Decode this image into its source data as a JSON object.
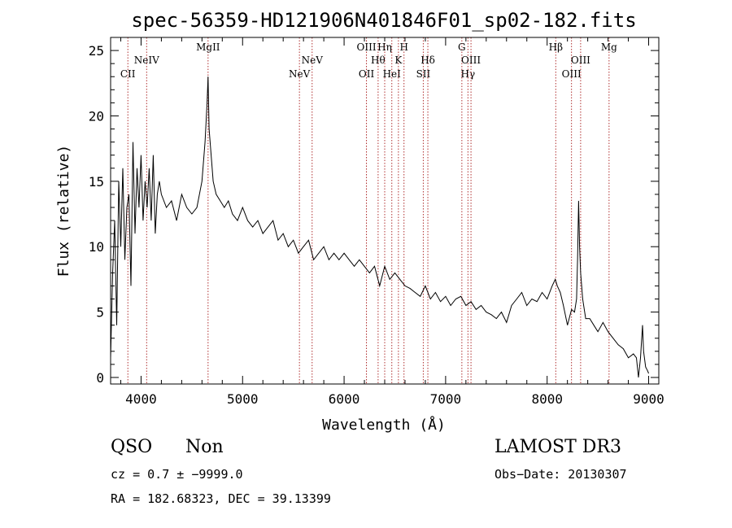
{
  "chart_data": {
    "type": "line",
    "title": "spec-56359-HD121906N401846F01_sp02-182.fits",
    "xlabel": "Wavelength (Å)",
    "ylabel": "Flux (relative)",
    "xlim": [
      3700,
      9100
    ],
    "ylim": [
      -0.5,
      26
    ],
    "xticks": [
      4000,
      5000,
      6000,
      7000,
      8000,
      9000
    ],
    "yticks": [
      0,
      5,
      10,
      15,
      20,
      25
    ],
    "series": [
      {
        "name": "spectrum",
        "x": [
          3700,
          3720,
          3740,
          3760,
          3780,
          3800,
          3820,
          3840,
          3860,
          3880,
          3900,
          3920,
          3940,
          3960,
          3980,
          4000,
          4020,
          4040,
          4060,
          4080,
          4100,
          4120,
          4140,
          4160,
          4180,
          4200,
          4250,
          4300,
          4350,
          4400,
          4450,
          4500,
          4550,
          4600,
          4630,
          4650,
          4660,
          4670,
          4690,
          4710,
          4740,
          4780,
          4820,
          4860,
          4900,
          4950,
          5000,
          5050,
          5100,
          5150,
          5200,
          5250,
          5300,
          5350,
          5400,
          5450,
          5500,
          5550,
          5600,
          5650,
          5700,
          5750,
          5800,
          5850,
          5900,
          5950,
          6000,
          6050,
          6100,
          6150,
          6200,
          6250,
          6300,
          6350,
          6400,
          6450,
          6500,
          6550,
          6600,
          6650,
          6700,
          6750,
          6800,
          6850,
          6900,
          6950,
          7000,
          7050,
          7100,
          7150,
          7200,
          7250,
          7300,
          7350,
          7400,
          7450,
          7500,
          7550,
          7600,
          7650,
          7700,
          7750,
          7800,
          7850,
          7900,
          7950,
          8000,
          8050,
          8080,
          8100,
          8130,
          8160,
          8200,
          8240,
          8270,
          8290,
          8300,
          8310,
          8320,
          8330,
          8350,
          8380,
          8420,
          8460,
          8500,
          8550,
          8600,
          8650,
          8700,
          8750,
          8800,
          8850,
          8880,
          8900,
          8920,
          8940,
          8950,
          8970,
          8990,
          9000
        ],
        "values": [
          1.5,
          8,
          12,
          4,
          15,
          10,
          16,
          9,
          13,
          14,
          7,
          18,
          11,
          16,
          13,
          17,
          12,
          15,
          13,
          16,
          12,
          17,
          11,
          14,
          15,
          14,
          13,
          13.5,
          12,
          14,
          13,
          12.5,
          13,
          15,
          18,
          21,
          23,
          19,
          17,
          15,
          14,
          13.5,
          13,
          13.5,
          12.5,
          12,
          13,
          12,
          11.5,
          12,
          11,
          11.5,
          12,
          10.5,
          11,
          10,
          10.5,
          9.5,
          10,
          10.5,
          9,
          9.5,
          10,
          9,
          9.5,
          9,
          9.5,
          9,
          8.5,
          9,
          8.5,
          8,
          8.5,
          7,
          8.5,
          7.5,
          8,
          7.5,
          7,
          6.8,
          6.5,
          6.2,
          7,
          6,
          6.5,
          5.8,
          6.2,
          5.5,
          6,
          6.2,
          5.5,
          5.8,
          5.2,
          5.5,
          5,
          4.8,
          4.5,
          5,
          4.2,
          5.5,
          6,
          6.5,
          5.5,
          6,
          5.8,
          6.5,
          6,
          7,
          7.5,
          7,
          6.5,
          5.5,
          4,
          5.2,
          5,
          6,
          9,
          13.5,
          10,
          8,
          6,
          4.5,
          4.5,
          4,
          3.5,
          4.2,
          3.5,
          3,
          2.5,
          2.2,
          1.5,
          1.8,
          1.5,
          0,
          1.5,
          4,
          2,
          0.8,
          0.5,
          0.3
        ]
      }
    ],
    "lines": [
      {
        "label": "CII",
        "x": 3870,
        "row": 3
      },
      {
        "label": "NeIV",
        "x": 4055,
        "row": 2
      },
      {
        "label": "MgII",
        "x": 4660,
        "row": 1
      },
      {
        "label": "NeV",
        "x": 5560,
        "row": 3
      },
      {
        "label": "NeV",
        "x": 5685,
        "row": 2
      },
      {
        "label": "OII",
        "x": 6220,
        "row": 3
      },
      {
        "label": "OIII",
        "x": 6220,
        "row": 1
      },
      {
        "label": "Hθ",
        "x": 6335,
        "row": 2
      },
      {
        "label": "Hη",
        "x": 6400,
        "row": 1
      },
      {
        "label": "HeI",
        "x": 6470,
        "row": 3
      },
      {
        "label": "K",
        "x": 6535,
        "row": 2
      },
      {
        "label": "H",
        "x": 6590,
        "row": 1
      },
      {
        "label": "SII",
        "x": 6780,
        "row": 3
      },
      {
        "label": "Hδ",
        "x": 6825,
        "row": 2
      },
      {
        "label": "G",
        "x": 7160,
        "row": 1
      },
      {
        "label": "Hγ",
        "x": 7220,
        "row": 3
      },
      {
        "label": "OIII",
        "x": 7250,
        "row": 2
      },
      {
        "label": "Hβ",
        "x": 8085,
        "row": 1
      },
      {
        "label": "OIII",
        "x": 8240,
        "row": 3
      },
      {
        "label": "OIII",
        "x": 8330,
        "row": 2
      },
      {
        "label": "Mg",
        "x": 8610,
        "row": 1
      }
    ]
  },
  "info": {
    "class": "QSO",
    "subclass": "Non",
    "survey": "LAMOST DR3",
    "cz": "cz = 0.7 ± −9999.0",
    "obs_date": "Obs−Date: 20130307",
    "radec": "RA = 182.68323, DEC =  39.13399"
  }
}
